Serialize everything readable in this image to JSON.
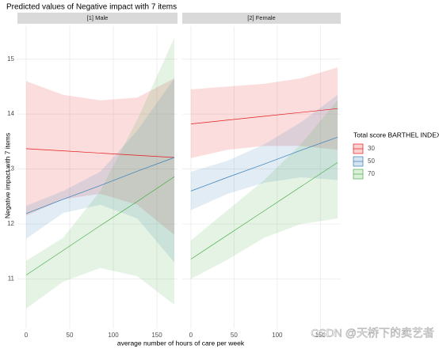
{
  "chart_data": {
    "type": "line",
    "title": "Predicted values of Negative impact with 7 items",
    "x_label": "average number of hours of care per week",
    "y_label": "Negative impact with 7 items",
    "x": [
      0,
      42.5,
      85,
      127.5,
      170
    ],
    "xlim": [
      -10,
      173.6
    ],
    "xticks": [
      0,
      50,
      100,
      150
    ],
    "ylim": [
      10.1,
      15.6
    ],
    "yticks": [
      11,
      12,
      13,
      14,
      15
    ],
    "grid": true,
    "legend": {
      "title": "Total score BARTHEL INDEX",
      "position": "right",
      "entries": [
        {
          "name": "30",
          "color": "#e41a1c"
        },
        {
          "name": "50",
          "color": "#377eb8"
        },
        {
          "name": "70",
          "color": "#4daf4a"
        }
      ]
    },
    "facets": [
      {
        "label": "[1] Male",
        "series": [
          {
            "values": [
              13.37,
              13.33,
              13.29,
              13.25,
              13.21
            ],
            "lower": [
              12.15,
              12.45,
              12.55,
              12.35,
              11.8
            ],
            "upper": [
              14.6,
              14.35,
              14.25,
              14.3,
              14.65
            ]
          },
          {
            "values": [
              12.19,
              12.45,
              12.7,
              12.96,
              13.21
            ],
            "lower": [
              11.73,
              12.2,
              12.35,
              12.1,
              11.3
            ],
            "upper": [
              12.33,
              12.6,
              12.95,
              13.7,
              14.65
            ]
          },
          {
            "values": [
              11.07,
              11.52,
              11.97,
              12.41,
              12.86
            ],
            "lower": [
              10.46,
              10.95,
              11.2,
              11.05,
              10.53
            ],
            "upper": [
              11.33,
              11.75,
              12.6,
              13.9,
              15.39
            ]
          }
        ]
      },
      {
        "label": "[2] Female",
        "series": [
          {
            "values": [
              13.82,
              13.89,
              13.96,
              14.03,
              14.1
            ],
            "lower": [
              13.2,
              13.35,
              13.42,
              13.42,
              13.35
            ],
            "upper": [
              14.45,
              14.5,
              14.55,
              14.65,
              14.85
            ]
          },
          {
            "values": [
              12.6,
              12.85,
              13.09,
              13.34,
              13.58
            ],
            "lower": [
              12.25,
              12.55,
              12.75,
              12.85,
              12.8
            ],
            "upper": [
              12.95,
              13.15,
              13.45,
              13.85,
              14.35
            ]
          },
          {
            "values": [
              11.36,
              11.8,
              12.24,
              12.68,
              13.12
            ],
            "lower": [
              11.0,
              11.35,
              11.75,
              12.0,
              12.1
            ],
            "upper": [
              11.7,
              12.25,
              12.8,
              13.45,
              14.25
            ]
          }
        ]
      }
    ]
  },
  "watermark": "CSDN @天桥下的卖艺者"
}
